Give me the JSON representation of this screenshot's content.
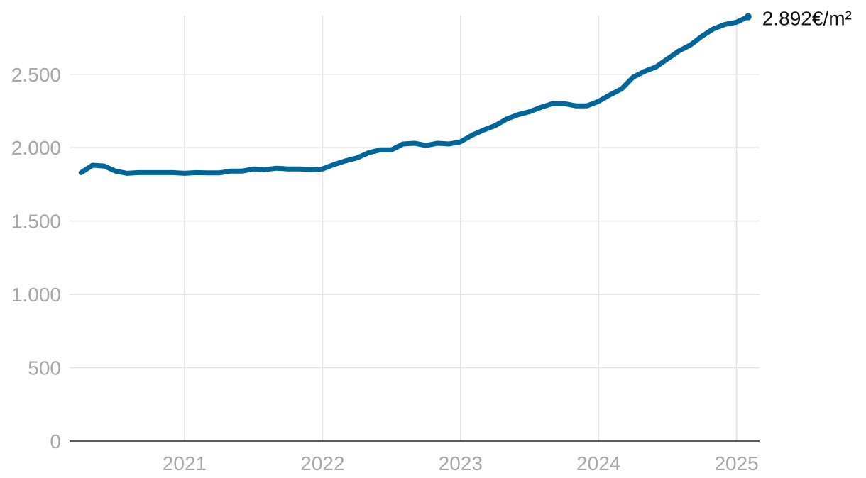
{
  "chart_data": {
    "type": "line",
    "title": "",
    "xlabel": "",
    "ylabel": "",
    "unit": "€/m²",
    "color": "#006699",
    "ylim": [
      0,
      2900
    ],
    "xlim": [
      "2020-03",
      "2025-03"
    ],
    "y_ticks": [
      0,
      500,
      1000,
      1500,
      2000,
      2500
    ],
    "y_tick_labels": [
      "0",
      "500",
      "1.000",
      "1.500",
      "2.000",
      "2.500"
    ],
    "x_ticks": [
      "2021",
      "2022",
      "2023",
      "2024",
      "2025"
    ],
    "grid": true,
    "legend": "none",
    "end_label": "2.892€/m²",
    "series": [
      {
        "x": [
          "2020-04",
          "2020-05",
          "2020-06",
          "2020-07",
          "2020-08",
          "2020-09",
          "2020-10",
          "2020-11",
          "2020-12",
          "2021-01",
          "2021-02",
          "2021-03",
          "2021-04",
          "2021-05",
          "2021-06",
          "2021-07",
          "2021-08",
          "2021-09",
          "2021-10",
          "2021-11",
          "2021-12",
          "2022-01",
          "2022-02",
          "2022-03",
          "2022-04",
          "2022-05",
          "2022-06",
          "2022-07",
          "2022-08",
          "2022-09",
          "2022-10",
          "2022-11",
          "2022-12",
          "2023-01",
          "2023-02",
          "2023-03",
          "2023-04",
          "2023-05",
          "2023-06",
          "2023-07",
          "2023-08",
          "2023-09",
          "2023-10",
          "2023-11",
          "2023-12",
          "2024-01",
          "2024-02",
          "2024-03",
          "2024-04",
          "2024-05",
          "2024-06",
          "2024-07",
          "2024-08",
          "2024-09",
          "2024-10",
          "2024-11",
          "2024-12",
          "2025-01",
          "2025-02"
        ],
        "y": [
          1830,
          1880,
          1875,
          1840,
          1825,
          1830,
          1830,
          1830,
          1830,
          1825,
          1830,
          1828,
          1828,
          1840,
          1840,
          1855,
          1850,
          1860,
          1855,
          1855,
          1850,
          1855,
          1885,
          1910,
          1930,
          1965,
          1985,
          1985,
          2025,
          2030,
          2015,
          2030,
          2025,
          2040,
          2085,
          2120,
          2150,
          2195,
          2225,
          2245,
          2275,
          2300,
          2300,
          2285,
          2285,
          2315,
          2360,
          2400,
          2480,
          2520,
          2550,
          2605,
          2660,
          2700,
          2760,
          2810,
          2840,
          2855,
          2892
        ]
      }
    ]
  }
}
